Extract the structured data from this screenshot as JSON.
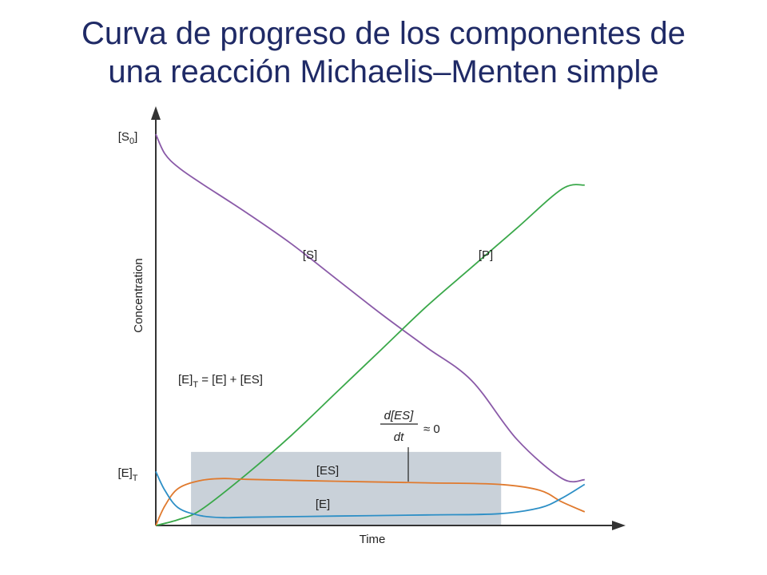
{
  "title_line1": "Curva de progreso de los componentes de",
  "title_line2": "una reacción Michaelis–Menten simple",
  "chart_data": {
    "type": "line",
    "xlabel": "Time",
    "ylabel": "Concentration",
    "xlim": [
      0,
      1
    ],
    "ylim": [
      0,
      1
    ],
    "y_ticks": [
      {
        "base": "[S",
        "sub": "0",
        "close": "]",
        "value": 1.0
      },
      {
        "base": "[E]",
        "sub": "T",
        "close": "",
        "value": 0.138
      }
    ],
    "steady_state_region": {
      "x_start": 0.078,
      "x_end": 0.765,
      "y_top": 0.188,
      "color": "#c9d1d9"
    },
    "series": [
      {
        "name": "[S]",
        "color": "#8a5aa8",
        "x": [
          0.0,
          0.02,
          0.05,
          0.1,
          0.2,
          0.3,
          0.4,
          0.5,
          0.6,
          0.7,
          0.8,
          0.9,
          0.95
        ],
        "y": [
          1.0,
          0.95,
          0.915,
          0.875,
          0.8,
          0.72,
          0.63,
          0.54,
          0.455,
          0.37,
          0.22,
          0.12,
          0.117
        ]
      },
      {
        "name": "[P]",
        "color": "#3aa84a",
        "x": [
          0.0,
          0.05,
          0.1,
          0.2,
          0.3,
          0.4,
          0.5,
          0.6,
          0.7,
          0.8,
          0.9,
          0.95
        ],
        "y": [
          0.0,
          0.015,
          0.04,
          0.13,
          0.23,
          0.34,
          0.45,
          0.56,
          0.66,
          0.76,
          0.86,
          0.87
        ]
      },
      {
        "name": "[ES]",
        "color": "#e07a2e",
        "x": [
          0.0,
          0.02,
          0.05,
          0.1,
          0.15,
          0.2,
          0.4,
          0.6,
          0.76,
          0.85,
          0.9,
          0.95
        ],
        "y": [
          0.0,
          0.05,
          0.095,
          0.115,
          0.12,
          0.118,
          0.113,
          0.109,
          0.105,
          0.09,
          0.06,
          0.035
        ]
      },
      {
        "name": "[E]",
        "color": "#2d8fc6",
        "x": [
          0.0,
          0.02,
          0.05,
          0.1,
          0.15,
          0.2,
          0.4,
          0.6,
          0.76,
          0.85,
          0.9,
          0.95
        ],
        "y": [
          0.138,
          0.09,
          0.045,
          0.025,
          0.02,
          0.021,
          0.024,
          0.027,
          0.03,
          0.045,
          0.07,
          0.105
        ]
      }
    ],
    "annotations": {
      "conservation": {
        "left": "[E]",
        "sub": "T",
        "right": " = [E] + [ES]"
      },
      "steady_state": {
        "numerator": "d[ES]",
        "denominator": "dt",
        "relation": "≈ 0"
      }
    }
  }
}
